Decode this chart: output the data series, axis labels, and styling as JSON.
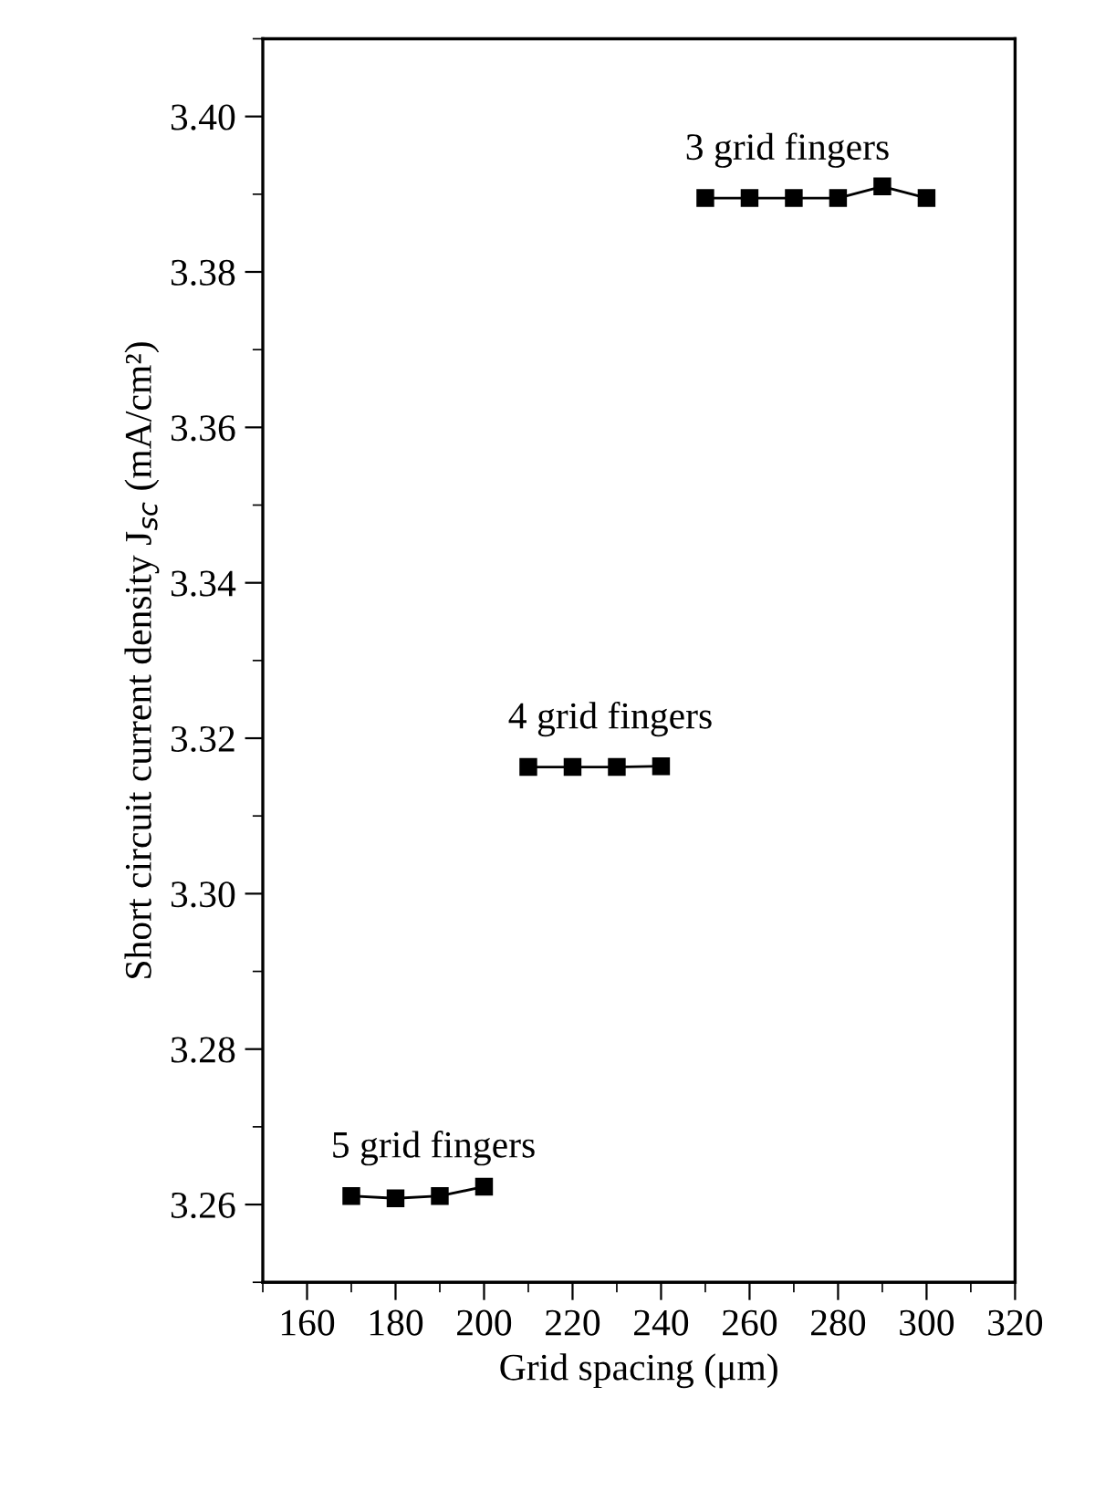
{
  "chart_data": {
    "type": "line",
    "xlabel": "Grid spacing (μm)",
    "ylabel": "Short circuit current density J$_{sc}$ (mA/cm²)",
    "xlim": [
      150,
      320
    ],
    "xticks": [
      160,
      180,
      200,
      220,
      240,
      260,
      280,
      300,
      320
    ],
    "ylim": [
      3.25,
      3.41
    ],
    "yticks": [
      {
        "value": 3.26,
        "label": "3.26"
      },
      {
        "value": 3.28,
        "label": "3.28"
      },
      {
        "value": 3.3,
        "label": "3.30"
      },
      {
        "value": 3.32,
        "label": "3.32"
      },
      {
        "value": 3.34,
        "label": "3.34"
      },
      {
        "value": 3.36,
        "label": "3.36"
      },
      {
        "value": 3.38,
        "label": "3.38"
      },
      {
        "value": 3.4,
        "label": "3.40"
      }
    ],
    "grid": false,
    "marker": "square",
    "line_style": "solid",
    "series": [
      {
        "name": "5 grid fingers",
        "color": "#000000",
        "x": [
          170,
          180,
          190,
          200
        ],
        "values": [
          3.2611,
          3.2608,
          3.2611,
          3.2623
        ]
      },
      {
        "name": "4 grid fingers",
        "color": "#000000",
        "x": [
          210,
          220,
          230,
          240
        ],
        "values": [
          3.3163,
          3.3163,
          3.3163,
          3.3164
        ]
      },
      {
        "name": "3 grid fingers",
        "color": "#000000",
        "x": [
          250,
          260,
          270,
          280,
          290,
          300
        ],
        "values": [
          3.3895,
          3.3895,
          3.3895,
          3.3895,
          3.391,
          3.3895
        ]
      }
    ]
  }
}
